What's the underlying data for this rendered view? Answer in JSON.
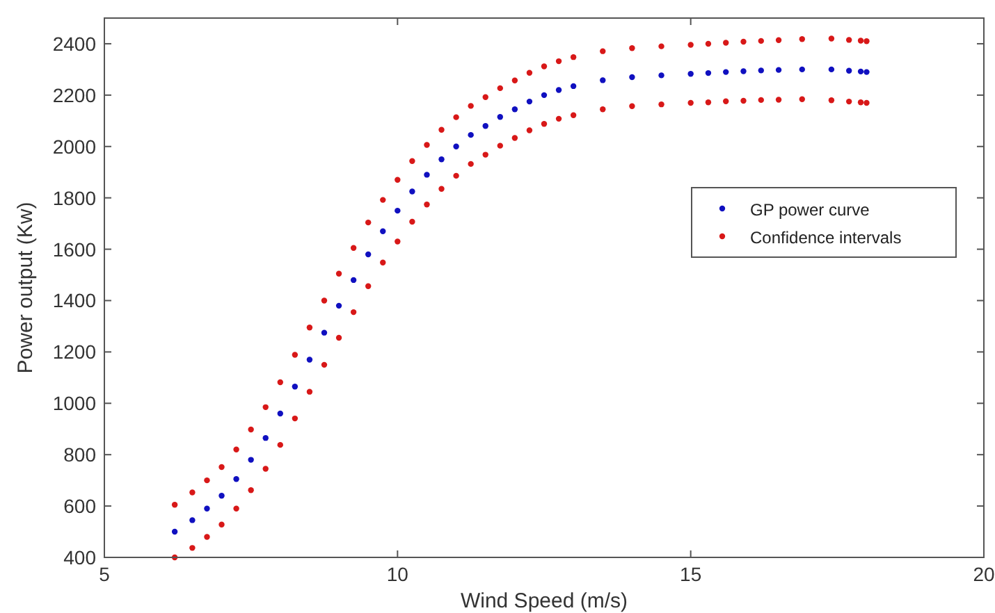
{
  "chart_data": {
    "type": "scatter",
    "xlabel": "Wind Speed (m/s)",
    "ylabel": "Power output (Kw)",
    "x": [
      6.2,
      6.5,
      6.75,
      7.0,
      7.25,
      7.5,
      7.75,
      8.0,
      8.25,
      8.5,
      8.75,
      9.0,
      9.25,
      9.5,
      9.75,
      10.0,
      10.25,
      10.5,
      10.75,
      11.0,
      11.25,
      11.5,
      11.75,
      12.0,
      12.25,
      12.5,
      12.75,
      13.0,
      13.5,
      14.0,
      14.5,
      15.0,
      15.3,
      15.6,
      15.9,
      16.2,
      16.5,
      16.9,
      17.4,
      17.7,
      17.9,
      18.0
    ],
    "series": [
      {
        "name": "GP power curve",
        "color": "#1010c0",
        "values": [
          500,
          545,
          590,
          640,
          705,
          780,
          865,
          960,
          1065,
          1170,
          1275,
          1380,
          1480,
          1580,
          1670,
          1750,
          1825,
          1890,
          1950,
          2000,
          2045,
          2080,
          2115,
          2145,
          2175,
          2200,
          2220,
          2235,
          2258,
          2270,
          2277,
          2283,
          2286,
          2290,
          2293,
          2296,
          2298,
          2300,
          2300,
          2295,
          2292,
          2290
        ]
      },
      {
        "name": "Confidence intervals",
        "color": "#d81818",
        "values": [
          605,
          653,
          700,
          752,
          820,
          898,
          985,
          1082,
          1189,
          1295,
          1400,
          1505,
          1605,
          1704,
          1792,
          1870,
          1943,
          2006,
          2065,
          2114,
          2158,
          2192,
          2227,
          2257,
          2287,
          2312,
          2332,
          2348,
          2371,
          2383,
          2390,
          2396,
          2400,
          2404,
          2408,
          2411,
          2414,
          2418,
          2420,
          2415,
          2412,
          2410
        ]
      },
      {
        "color": "#d81818",
        "values": [
          400,
          437,
          480,
          528,
          590,
          662,
          745,
          838,
          941,
          1045,
          1150,
          1255,
          1355,
          1456,
          1548,
          1630,
          1707,
          1774,
          1835,
          1886,
          1932,
          1968,
          2003,
          2033,
          2063,
          2088,
          2108,
          2122,
          2145,
          2157,
          2164,
          2170,
          2172,
          2176,
          2178,
          2181,
          2182,
          2184,
          2180,
          2175,
          2172,
          2170
        ]
      }
    ],
    "xlim": [
      5,
      20
    ],
    "xticks": [
      5,
      10,
      15,
      20
    ],
    "ylim": [
      400,
      2500
    ],
    "yticks": [
      400,
      600,
      800,
      1000,
      1200,
      1400,
      1600,
      1800,
      2000,
      2200,
      2400
    ],
    "marker": "circle",
    "legend": "right",
    "grid": false
  }
}
